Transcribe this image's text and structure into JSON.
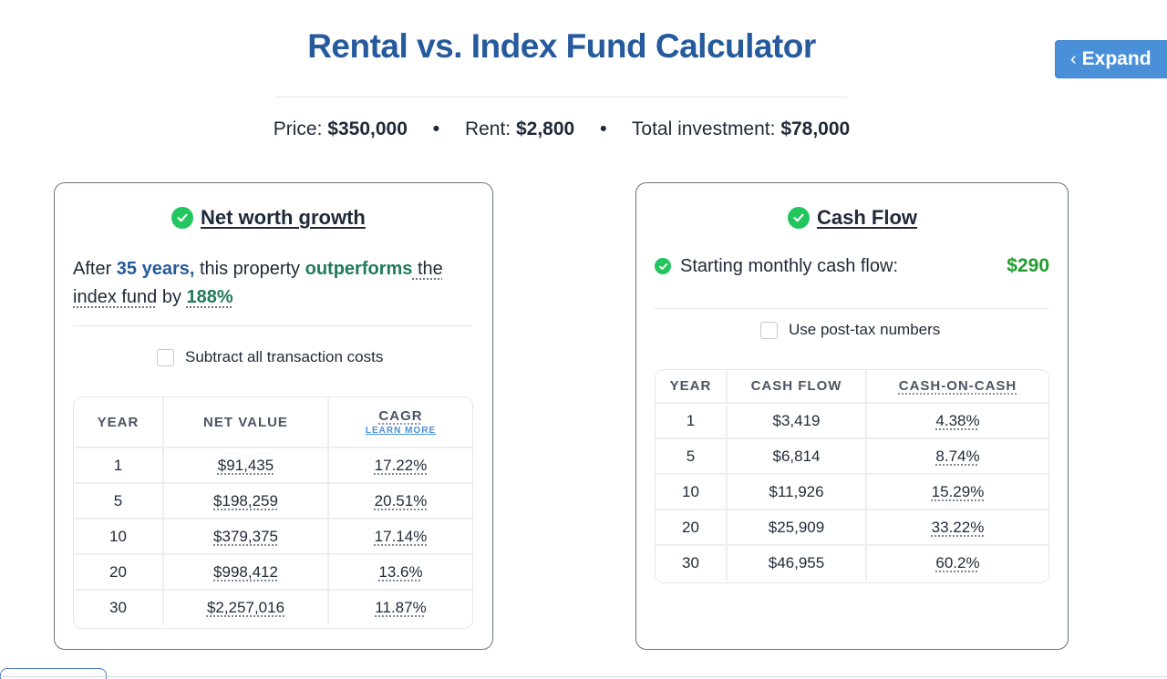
{
  "header": {
    "title": "Rental vs. Index Fund Calculator",
    "expand_label": "Expand"
  },
  "summary": {
    "price_label": "Price:",
    "price_value": "$350,000",
    "rent_label": "Rent:",
    "rent_value": "$2,800",
    "total_label": "Total investment:",
    "total_value": "$78,000",
    "separator": "•"
  },
  "net_worth": {
    "heading": "Net worth growth",
    "sentence": {
      "after": "After ",
      "years": "35 years,",
      "mid": " this property ",
      "outperforms": "outperforms",
      "the": " the",
      "index_fund": "index fund",
      "by": " by ",
      "percent": "188%"
    },
    "checkbox_label": "Subtract all transaction costs",
    "columns": {
      "year": "YEAR",
      "net_value": "NET VALUE",
      "cagr": "CAGR",
      "learn_more": "LEARN MORE"
    },
    "rows": [
      {
        "year": "1",
        "net_value": "$91,435",
        "cagr": "17.22%"
      },
      {
        "year": "5",
        "net_value": "$198,259",
        "cagr": "20.51%"
      },
      {
        "year": "10",
        "net_value": "$379,375",
        "cagr": "17.14%"
      },
      {
        "year": "20",
        "net_value": "$998,412",
        "cagr": "13.6%"
      },
      {
        "year": "30",
        "net_value": "$2,257,016",
        "cagr": "11.87%"
      }
    ]
  },
  "cash_flow": {
    "heading": "Cash Flow",
    "starting_label": "Starting monthly cash flow:",
    "starting_value": "$290",
    "checkbox_label": "Use post-tax numbers",
    "columns": {
      "year": "YEAR",
      "cash_flow": "CASH FLOW",
      "coc": "CASH-ON-CASH"
    },
    "rows": [
      {
        "year": "1",
        "cash_flow": "$3,419",
        "coc": "4.38%"
      },
      {
        "year": "5",
        "cash_flow": "$6,814",
        "coc": "8.74%"
      },
      {
        "year": "10",
        "cash_flow": "$11,926",
        "coc": "15.29%"
      },
      {
        "year": "20",
        "cash_flow": "$25,909",
        "coc": "33.22%"
      },
      {
        "year": "30",
        "cash_flow": "$46,955",
        "coc": "60.2%"
      }
    ]
  },
  "icons": {
    "check": "check-circle-icon",
    "chevron": "chevron-left-icon"
  },
  "colors": {
    "title": "#255a9c",
    "accent_button": "#4a90d9",
    "success": "#22c55e",
    "cash_amount": "#1f9d2c",
    "outperform": "#1f7a5a"
  }
}
